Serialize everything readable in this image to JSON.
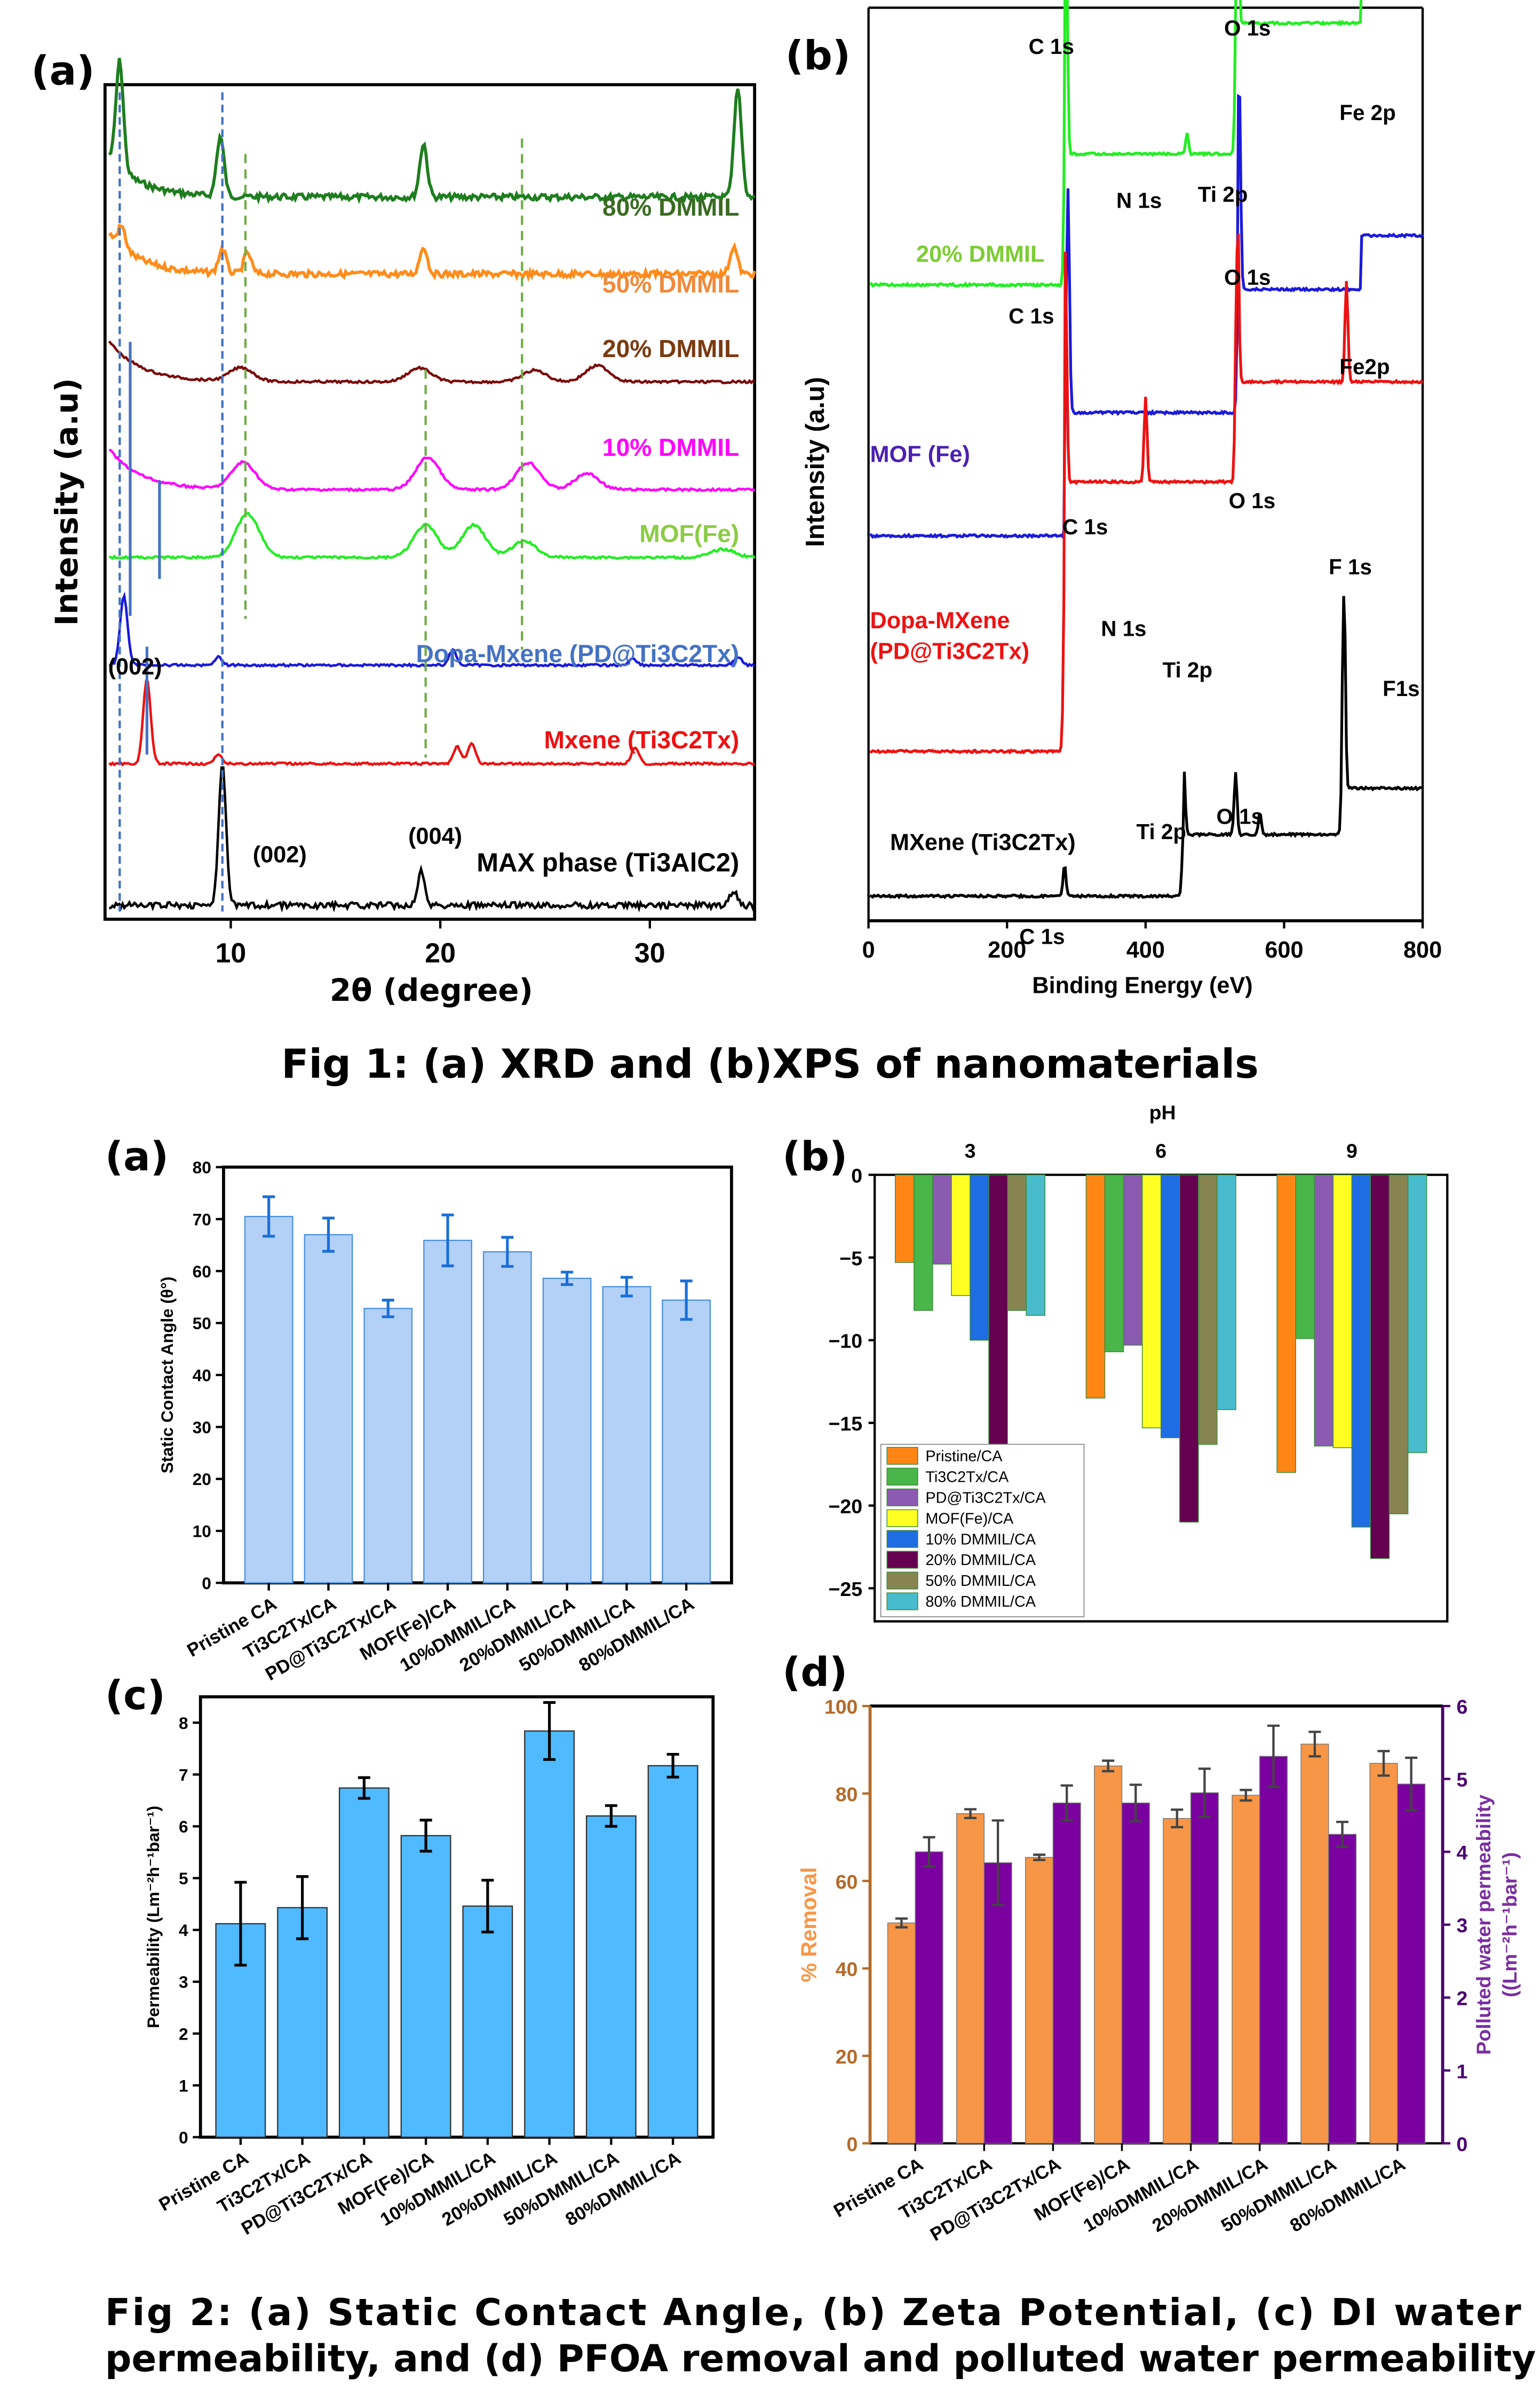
{
  "fig1": {
    "caption": "Fig 1: (a) XRD and (b)XPS of nanomaterials",
    "panel_a_label": "(a)",
    "panel_b_label": "(b)"
  },
  "fig2": {
    "caption_line1": "Fig 2: (a) Static Contact Angle, (b) Zeta Potential, (c) DI water",
    "caption_line2": "permeability, and (d) PFOA removal and polluted water permeability",
    "panel_a_label": "(a)",
    "panel_b_label": "(b)",
    "panel_c_label": "(c)",
    "panel_d_label": "(d)"
  },
  "chart_data": [
    {
      "id": "xrd",
      "type": "line",
      "title": "",
      "xlabel": "2θ (degree)",
      "ylabel": "Intensity (a.u)",
      "xlim": [
        4,
        35
      ],
      "xticks": [
        10,
        20,
        30
      ],
      "series": [
        {
          "name": "80% DMMIL",
          "color": "#1e7d1e",
          "label_color": "#3a6b22",
          "peaks": [
            [
              4.7,
              1.0
            ],
            [
              9.5,
              0.55
            ],
            [
              19.2,
              0.5
            ],
            [
              34.2,
              1.0
            ]
          ]
        },
        {
          "name": "50% DMMIL",
          "color": "#ff8c1a",
          "label_color": "#f08a3c",
          "peaks": [
            [
              4.8,
              0.3
            ],
            [
              9.6,
              0.35
            ],
            [
              10.8,
              0.3
            ],
            [
              19.2,
              0.4
            ],
            [
              34.0,
              0.4
            ]
          ]
        },
        {
          "name": "20% DMMIL",
          "color": "#7b0a0a",
          "label_color": "#7a3a10",
          "peaks": [
            [
              10.5,
              0.3
            ],
            [
              19.0,
              0.3
            ],
            [
              24.5,
              0.25
            ],
            [
              27.5,
              0.35
            ]
          ]
        },
        {
          "name": "10% DMMIL",
          "color": "#ff00ff",
          "label_color": "#ff00ff",
          "peaks": [
            [
              10.6,
              0.5
            ],
            [
              19.4,
              0.6
            ],
            [
              24.2,
              0.5
            ],
            [
              27.0,
              0.3
            ]
          ]
        },
        {
          "name": "MOF(Fe)",
          "color": "#22ee22",
          "label_color": "#8ccc44",
          "peaks": [
            [
              10.8,
              0.8
            ],
            [
              19.3,
              0.6
            ],
            [
              21.6,
              0.6
            ],
            [
              24.0,
              0.3
            ],
            [
              33.5,
              0.15
            ]
          ]
        },
        {
          "name": "Dopa-Mxene (PD@Ti3C2Tx)",
          "color": "#1a1adb",
          "label_color": "#4472c4",
          "peaks": [
            [
              4.9,
              1.0
            ],
            [
              9.4,
              0.12
            ],
            [
              20.6,
              0.22
            ],
            [
              29.2,
              0.1
            ],
            [
              34.2,
              0.12
            ]
          ]
        },
        {
          "name": "Mxene (Ti3C2Tx)",
          "color": "#ee1111",
          "label_color": "#ee1111",
          "peaks": [
            [
              6.0,
              1.0
            ],
            [
              9.4,
              0.1
            ],
            [
              20.8,
              0.2
            ],
            [
              21.5,
              0.25
            ],
            [
              29.3,
              0.2
            ]
          ]
        },
        {
          "name": "MAX phase (Ti3AlC2)",
          "color": "#000000",
          "label_color": "#000000",
          "peaks": [
            [
              9.6,
              1.0
            ],
            [
              19.1,
              0.25
            ],
            [
              34.0,
              0.1
            ]
          ]
        }
      ],
      "annotations": [
        "(002)",
        "(002)",
        "(004)"
      ]
    },
    {
      "id": "xps",
      "type": "line",
      "xlabel": "Binding Energy (eV)",
      "ylabel": "Intensity (a.u)",
      "xlim": [
        0,
        800
      ],
      "xticks": [
        0,
        200,
        400,
        600,
        800
      ],
      "series": [
        {
          "name": "20% DMMIL",
          "color": "#22ee22",
          "label_color": "#7ccc33",
          "peak_labels": [
            "C 1s",
            "N 1s",
            "Ti 2p",
            "O 1s",
            "Fe 2p"
          ]
        },
        {
          "name": "MOF (Fe)",
          "color": "#1a1adb",
          "label_color": "#4b1fb3",
          "peak_labels": [
            "C 1s",
            "O 1s",
            "Fe2p"
          ]
        },
        {
          "name": "Dopa-MXene (PD@Ti3C2Tx)",
          "color": "#ee1111",
          "label_color": "#ee1111",
          "peak_labels": [
            "C 1s",
            "N 1s",
            "Ti 2p",
            "O 1s",
            "F 1s"
          ]
        },
        {
          "name": "MXene (Ti3C2Tx)",
          "color": "#000000",
          "label_color": "#000000",
          "peak_labels": [
            "C 1s",
            "Ti 2p",
            "O 1s",
            "F1s"
          ]
        }
      ]
    },
    {
      "id": "contact_angle",
      "type": "bar",
      "ylabel": "Static Contact Angle (θ°)",
      "ylim": [
        0,
        80
      ],
      "yticks": [
        0,
        10,
        20,
        30,
        40,
        50,
        60,
        70,
        80
      ],
      "categories": [
        "Pristine CA",
        "Ti3C2Tx/CA",
        "PD@Ti3C2Tx/CA",
        "MOF(Fe)/CA",
        "10%DMMIL/CA",
        "20%DMMIL/CA",
        "50%DMMIL/CA",
        "80%DMMIL/CA"
      ],
      "values": [
        70.5,
        67.0,
        52.8,
        65.9,
        63.7,
        58.6,
        57.0,
        54.4
      ],
      "errors": [
        3.8,
        3.2,
        1.6,
        4.9,
        2.8,
        1.2,
        1.8,
        3.7
      ],
      "bar_color": "#b3d1f7",
      "error_color": "#1a6fd8"
    },
    {
      "id": "zeta",
      "type": "bar",
      "xlabel": "pH",
      "ylim": [
        -27,
        0
      ],
      "yticks": [
        0,
        -5,
        -10,
        -15,
        -20,
        -25
      ],
      "categories": [
        "3",
        "6",
        "9"
      ],
      "series": [
        {
          "name": "Pristine/CA",
          "color": "#ff8515",
          "values": [
            -5.3,
            -13.5,
            -18.0
          ]
        },
        {
          "name": "Ti3C2Tx/CA",
          "color": "#48b648",
          "values": [
            -8.2,
            -10.7,
            -9.9
          ]
        },
        {
          "name": "PD@Ti3C2Tx/CA",
          "color": "#8a5bb0",
          "values": [
            -5.4,
            -10.3,
            -16.4
          ]
        },
        {
          "name": "MOF(Fe)/CA",
          "color": "#ffff22",
          "values": [
            -7.3,
            -15.3,
            -16.5
          ]
        },
        {
          "name": "10% DMMIL/CA",
          "color": "#1f6de3",
          "values": [
            -10.0,
            -15.9,
            -21.3
          ]
        },
        {
          "name": "20% DMMIL/CA",
          "color": "#650050",
          "values": [
            -16.3,
            -21.0,
            -23.2
          ]
        },
        {
          "name": "50% DMMIL/CA",
          "color": "#878452",
          "values": [
            -8.2,
            -16.3,
            -20.5
          ]
        },
        {
          "name": "80% DMMIL/CA",
          "color": "#48bccc",
          "values": [
            -8.5,
            -14.2,
            -16.8
          ]
        }
      ],
      "legend": "bottom-left"
    },
    {
      "id": "di_permeability",
      "type": "bar",
      "ylabel": "Permeability (Lm⁻²h⁻¹bar⁻¹)",
      "ylim": [
        0,
        8.5
      ],
      "yticks": [
        0,
        1,
        2,
        3,
        4,
        5,
        6,
        7,
        8
      ],
      "categories": [
        "Pristine CA",
        "Ti3C2Tx/CA",
        "PD@Ti3C2Tx/CA",
        "MOF(Fe)/CA",
        "10%DMMIL/CA",
        "20%DMMIL/CA",
        "50%DMMIL/CA",
        "80%DMMIL/CA"
      ],
      "values": [
        4.12,
        4.43,
        6.74,
        5.82,
        4.46,
        7.84,
        6.2,
        7.17
      ],
      "errors": [
        0.8,
        0.6,
        0.2,
        0.3,
        0.5,
        0.55,
        0.2,
        0.22
      ],
      "bar_color": "#4fbaff",
      "error_color": "#000000"
    },
    {
      "id": "pfoa",
      "type": "bar",
      "ylabel_left": "% Removal",
      "ylabel_right": "Polluted water permeability ((Lm⁻²h⁻¹bar⁻¹)",
      "ylim_left": [
        0,
        100
      ],
      "ylim_right": [
        0,
        6
      ],
      "yticks_left": [
        0,
        20,
        40,
        60,
        80,
        100
      ],
      "yticks_right": [
        0,
        1,
        2,
        3,
        4,
        5,
        6
      ],
      "categories": [
        "Pristine CA",
        "Ti3C2Tx/CA",
        "PD@Ti3C2Tx/CA",
        "MOF(Fe)/CA",
        "10%DMMIL/CA",
        "20%DMMIL/CA",
        "50%DMMIL/CA",
        "80%DMMIL/CA"
      ],
      "series": [
        {
          "name": "% Removal",
          "axis": "left",
          "color": "#f79646",
          "values": [
            50.4,
            75.4,
            65.4,
            86.3,
            74.3,
            79.6,
            91.3,
            86.9
          ],
          "errors": [
            1.0,
            1.0,
            0.6,
            1.2,
            2.0,
            1.2,
            2.8,
            2.8
          ]
        },
        {
          "name": "Polluted water permeability",
          "axis": "right",
          "color": "#7a00a0",
          "values": [
            4.0,
            3.85,
            4.67,
            4.67,
            4.81,
            5.31,
            4.24,
            4.93
          ],
          "errors": [
            0.2,
            0.58,
            0.24,
            0.25,
            0.33,
            0.42,
            0.17,
            0.36
          ]
        }
      ],
      "left_axis_color": "#b46b2a",
      "right_axis_color": "#4b0070"
    }
  ]
}
